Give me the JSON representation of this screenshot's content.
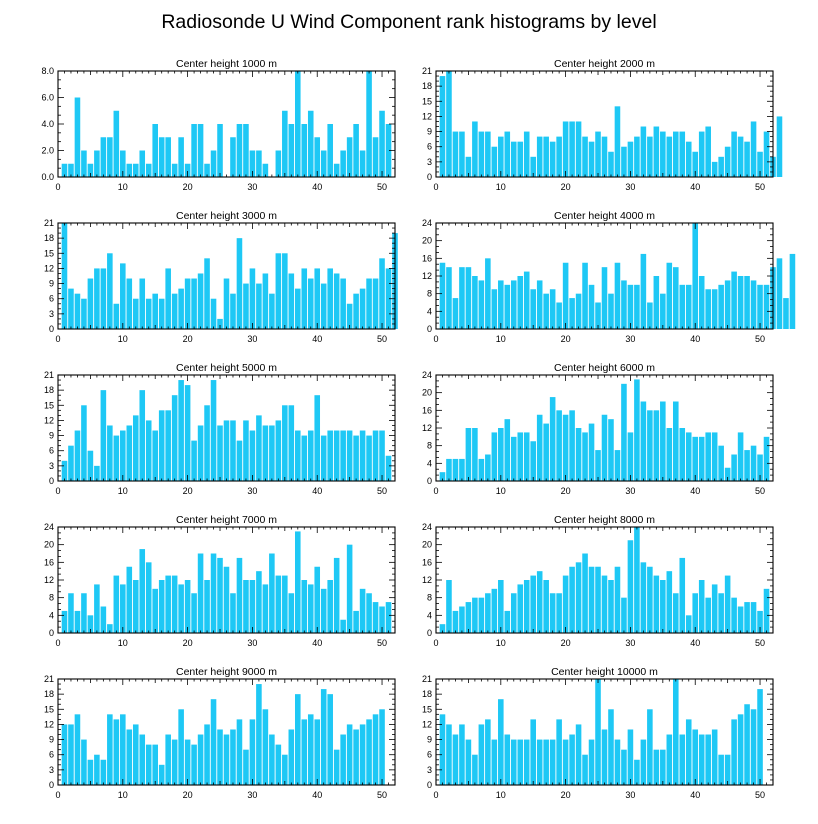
{
  "title": "Radiosonde U Wind Component rank histograms by level",
  "colors": {
    "bar": "#1ec8f5",
    "axis": "#000000",
    "background": "#ffffff"
  },
  "chart_data": [
    {
      "type": "bar",
      "title": "Center height 1000 m",
      "xlim": [
        0,
        52
      ],
      "ylim": [
        0,
        8
      ],
      "xticks": [
        0,
        10,
        20,
        30,
        40,
        50
      ],
      "yticks": [
        0,
        2,
        4,
        6,
        8
      ],
      "yticklabels": [
        "0.0",
        "2.0",
        "4.0",
        "6.0",
        "8.0"
      ],
      "values": [
        1,
        1,
        6,
        2,
        1,
        2,
        3,
        3,
        5,
        2,
        1,
        1,
        2,
        1,
        4,
        3,
        3,
        1,
        3,
        1,
        4,
        4,
        1,
        2,
        4,
        0,
        3,
        4,
        4,
        2,
        2,
        1,
        0,
        2,
        5,
        4,
        8,
        4,
        5,
        3,
        2,
        4,
        1,
        2,
        3,
        4,
        2,
        8,
        3,
        5,
        4
      ]
    },
    {
      "type": "bar",
      "title": "Center height 2000 m",
      "xlim": [
        0,
        52
      ],
      "ylim": [
        0,
        21
      ],
      "xticks": [
        0,
        10,
        20,
        30,
        40,
        50
      ],
      "yticks": [
        0,
        3,
        6,
        9,
        12,
        15,
        18,
        21
      ],
      "yticklabels": [
        "0",
        "3",
        "6",
        "9",
        "12",
        "15",
        "18",
        "21"
      ],
      "values": [
        20,
        21,
        9,
        9,
        4,
        11,
        9,
        9,
        6,
        8,
        9,
        7,
        7,
        9,
        4,
        8,
        8,
        7,
        8,
        11,
        11,
        11,
        8,
        7,
        9,
        8,
        5,
        14,
        6,
        7,
        8,
        10,
        8,
        10,
        9,
        8,
        9,
        9,
        7,
        5,
        9,
        10,
        3,
        4,
        6,
        9,
        8,
        7,
        11,
        5,
        9,
        4,
        12
      ]
    },
    {
      "type": "bar",
      "title": "Center height 3000 m",
      "xlim": [
        0,
        52
      ],
      "ylim": [
        0,
        21
      ],
      "xticks": [
        0,
        10,
        20,
        30,
        40,
        50
      ],
      "yticks": [
        0,
        3,
        6,
        9,
        12,
        15,
        18,
        21
      ],
      "yticklabels": [
        "0",
        "3",
        "6",
        "9",
        "12",
        "15",
        "18",
        "21"
      ],
      "values": [
        21,
        8,
        7,
        6,
        10,
        12,
        12,
        15,
        5,
        13,
        10,
        6,
        10,
        6,
        7,
        6,
        12,
        7,
        8,
        10,
        10,
        11,
        14,
        6,
        2,
        10,
        7,
        18,
        9,
        12,
        9,
        11,
        7,
        15,
        15,
        11,
        8,
        12,
        10,
        12,
        9,
        12,
        11,
        10,
        5,
        7,
        8,
        10,
        10,
        14,
        12,
        19
      ]
    },
    {
      "type": "bar",
      "title": "Center height 4000 m",
      "xlim": [
        0,
        52
      ],
      "ylim": [
        0,
        24
      ],
      "xticks": [
        0,
        10,
        20,
        30,
        40,
        50
      ],
      "yticks": [
        0,
        4,
        8,
        12,
        16,
        20,
        24
      ],
      "yticklabels": [
        "0",
        "4",
        "8",
        "12",
        "16",
        "20",
        "24"
      ],
      "values": [
        15,
        14,
        7,
        14,
        14,
        12,
        11,
        16,
        9,
        11,
        10,
        11,
        12,
        13,
        9,
        11,
        8,
        9,
        6,
        15,
        7,
        8,
        15,
        10,
        6,
        14,
        8,
        15,
        11,
        10,
        10,
        17,
        6,
        12,
        8,
        15,
        14,
        10,
        10,
        24,
        12,
        9,
        9,
        10,
        11,
        13,
        12,
        12,
        11,
        10,
        10,
        14,
        16,
        7,
        17
      ]
    },
    {
      "type": "bar",
      "title": "Center height 5000 m",
      "xlim": [
        0,
        52
      ],
      "ylim": [
        0,
        21
      ],
      "xticks": [
        0,
        10,
        20,
        30,
        40,
        50
      ],
      "yticks": [
        0,
        3,
        6,
        9,
        12,
        15,
        18,
        21
      ],
      "yticklabels": [
        "0",
        "3",
        "6",
        "9",
        "12",
        "15",
        "18",
        "21"
      ],
      "values": [
        4,
        7,
        10,
        15,
        6,
        3,
        18,
        11,
        9,
        10,
        11,
        13,
        18,
        12,
        10,
        14,
        14,
        17,
        20,
        19,
        8,
        11,
        15,
        20,
        11,
        12,
        12,
        8,
        12,
        10,
        13,
        11,
        11,
        12,
        15,
        15,
        10,
        9,
        10,
        17,
        9,
        10,
        10,
        10,
        10,
        9,
        10,
        9,
        10,
        10,
        5
      ]
    },
    {
      "type": "bar",
      "title": "Center height 6000 m",
      "xlim": [
        0,
        52
      ],
      "ylim": [
        0,
        24
      ],
      "xticks": [
        0,
        10,
        20,
        30,
        40,
        50
      ],
      "yticks": [
        0,
        4,
        8,
        12,
        16,
        20,
        24
      ],
      "yticklabels": [
        "0",
        "4",
        "8",
        "12",
        "16",
        "20",
        "24"
      ],
      "values": [
        2,
        5,
        5,
        5,
        12,
        12,
        5,
        6,
        11,
        12,
        14,
        10,
        11,
        11,
        9,
        15,
        13,
        19,
        16,
        15,
        16,
        12,
        11,
        13,
        7,
        15,
        14,
        7,
        22,
        11,
        23,
        18,
        16,
        16,
        18,
        12,
        18,
        12,
        11,
        10,
        10,
        11,
        11,
        8,
        3,
        6,
        11,
        7,
        8,
        6,
        10
      ]
    },
    {
      "type": "bar",
      "title": "Center height 7000 m",
      "xlim": [
        0,
        52
      ],
      "ylim": [
        0,
        24
      ],
      "xticks": [
        0,
        10,
        20,
        30,
        40,
        50
      ],
      "yticks": [
        0,
        4,
        8,
        12,
        16,
        20,
        24
      ],
      "yticklabels": [
        "0",
        "4",
        "8",
        "12",
        "16",
        "20",
        "24"
      ],
      "values": [
        5,
        9,
        5,
        9,
        4,
        11,
        6,
        2,
        13,
        11,
        15,
        12,
        19,
        16,
        10,
        12,
        13,
        13,
        11,
        12,
        9,
        18,
        12,
        18,
        17,
        15,
        9,
        17,
        12,
        12,
        14,
        11,
        18,
        13,
        13,
        9,
        23,
        12,
        11,
        15,
        10,
        12,
        17,
        3,
        20,
        5,
        10,
        9,
        7,
        6,
        7
      ]
    },
    {
      "type": "bar",
      "title": "Center height 8000 m",
      "xlim": [
        0,
        52
      ],
      "ylim": [
        0,
        24
      ],
      "xticks": [
        0,
        10,
        20,
        30,
        40,
        50
      ],
      "yticks": [
        0,
        4,
        8,
        12,
        16,
        20,
        24
      ],
      "yticklabels": [
        "0",
        "4",
        "8",
        "12",
        "16",
        "20",
        "24"
      ],
      "values": [
        2,
        12,
        5,
        6,
        7,
        8,
        8,
        9,
        10,
        12,
        5,
        9,
        11,
        12,
        13,
        14,
        12,
        9,
        9,
        13,
        15,
        16,
        18,
        15,
        15,
        13,
        12,
        15,
        8,
        21,
        24,
        16,
        15,
        13,
        12,
        14,
        9,
        17,
        4,
        9,
        12,
        8,
        11,
        9,
        13,
        8,
        6,
        7,
        7,
        5,
        10
      ]
    },
    {
      "type": "bar",
      "title": "Center height 9000 m",
      "xlim": [
        0,
        52
      ],
      "ylim": [
        0,
        21
      ],
      "xticks": [
        0,
        10,
        20,
        30,
        40,
        50
      ],
      "yticks": [
        0,
        3,
        6,
        9,
        12,
        15,
        18,
        21
      ],
      "yticklabels": [
        "0",
        "3",
        "6",
        "9",
        "12",
        "15",
        "18",
        "21"
      ],
      "values": [
        12,
        12,
        14,
        9,
        5,
        6,
        5,
        14,
        13,
        14,
        11,
        12,
        10,
        8,
        8,
        4,
        10,
        9,
        15,
        9,
        8,
        10,
        12,
        17,
        11,
        10,
        11,
        13,
        7,
        13,
        20,
        15,
        10,
        8,
        6,
        11,
        18,
        13,
        14,
        13,
        19,
        18,
        7,
        10,
        12,
        11,
        12,
        13,
        14,
        15
      ]
    },
    {
      "type": "bar",
      "title": "Center height 10000 m",
      "xlim": [
        0,
        52
      ],
      "ylim": [
        0,
        21
      ],
      "xticks": [
        0,
        10,
        20,
        30,
        40,
        50
      ],
      "yticks": [
        0,
        3,
        6,
        9,
        12,
        15,
        18,
        21
      ],
      "yticklabels": [
        "0",
        "3",
        "6",
        "9",
        "12",
        "15",
        "18",
        "21"
      ],
      "values": [
        14,
        12,
        10,
        12,
        9,
        6,
        12,
        13,
        9,
        17,
        10,
        9,
        9,
        9,
        13,
        9,
        9,
        9,
        13,
        9,
        10,
        12,
        6,
        9,
        21,
        11,
        15,
        9,
        7,
        11,
        5,
        9,
        15,
        7,
        7,
        10,
        21,
        10,
        13,
        11,
        10,
        10,
        11,
        6,
        6,
        13,
        14,
        16,
        15,
        19
      ]
    }
  ]
}
